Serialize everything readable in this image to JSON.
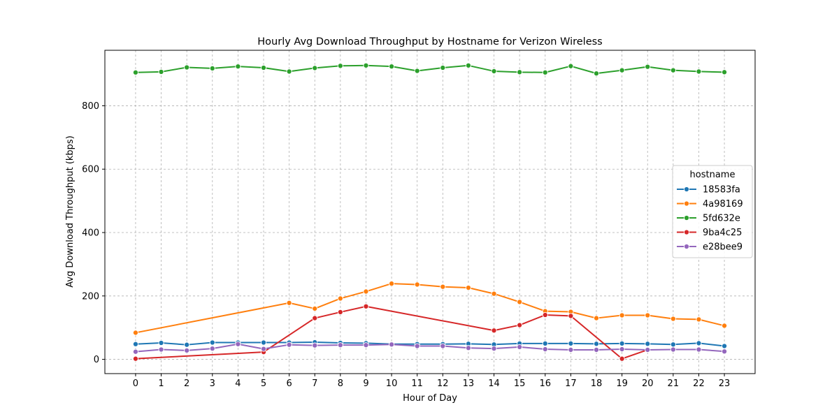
{
  "chart_data": {
    "type": "line",
    "title": "Hourly Avg Download Throughput by Hostname for Verizon Wireless",
    "xlabel": "Hour of Day",
    "ylabel": "Avg Download Throughput (kbps)",
    "xlim": [
      -1.2,
      24.2
    ],
    "ylim": [
      -45,
      975
    ],
    "x_ticks": [
      0,
      1,
      2,
      3,
      4,
      5,
      6,
      7,
      8,
      9,
      10,
      11,
      12,
      13,
      14,
      15,
      16,
      17,
      18,
      19,
      20,
      21,
      22,
      23
    ],
    "y_ticks": [
      0,
      200,
      400,
      600,
      800
    ],
    "grid": true,
    "legend": {
      "title": "hostname",
      "placement": "center-right"
    },
    "series": [
      {
        "name": "18583fa",
        "color": "#1f77b4",
        "points": [
          [
            0,
            48
          ],
          [
            1,
            52
          ],
          [
            2,
            46
          ],
          [
            3,
            53
          ],
          [
            4,
            53
          ],
          [
            5,
            53
          ],
          [
            6,
            53
          ],
          [
            7,
            54
          ],
          [
            8,
            52
          ],
          [
            9,
            51
          ],
          [
            10,
            48
          ],
          [
            11,
            48
          ],
          [
            12,
            48
          ],
          [
            13,
            49
          ],
          [
            14,
            47
          ],
          [
            15,
            50
          ],
          [
            16,
            50
          ],
          [
            17,
            50
          ],
          [
            18,
            49
          ],
          [
            19,
            50
          ],
          [
            20,
            49
          ],
          [
            21,
            47
          ],
          [
            22,
            51
          ],
          [
            23,
            42
          ]
        ]
      },
      {
        "name": "4a98169",
        "color": "#ff7f0e",
        "points": [
          [
            0,
            84
          ],
          [
            6,
            178
          ],
          [
            7,
            160
          ],
          [
            8,
            192
          ],
          [
            9,
            214
          ],
          [
            10,
            239
          ],
          [
            11,
            236
          ],
          [
            12,
            229
          ],
          [
            13,
            226
          ],
          [
            14,
            207
          ],
          [
            15,
            181
          ],
          [
            16,
            152
          ],
          [
            17,
            150
          ],
          [
            18,
            130
          ],
          [
            19,
            139
          ],
          [
            20,
            139
          ],
          [
            21,
            128
          ],
          [
            22,
            126
          ],
          [
            23,
            106
          ]
        ]
      },
      {
        "name": "5fd632e",
        "color": "#2ca02c",
        "points": [
          [
            0,
            905
          ],
          [
            1,
            907
          ],
          [
            2,
            921
          ],
          [
            3,
            918
          ],
          [
            4,
            924
          ],
          [
            5,
            920
          ],
          [
            6,
            908
          ],
          [
            7,
            919
          ],
          [
            8,
            926
          ],
          [
            9,
            927
          ],
          [
            10,
            924
          ],
          [
            11,
            910
          ],
          [
            12,
            920
          ],
          [
            13,
            927
          ],
          [
            14,
            909
          ],
          [
            15,
            906
          ],
          [
            16,
            905
          ],
          [
            17,
            925
          ],
          [
            18,
            902
          ],
          [
            19,
            912
          ],
          [
            20,
            923
          ],
          [
            21,
            912
          ],
          [
            22,
            908
          ],
          [
            23,
            906
          ]
        ]
      },
      {
        "name": "9ba4c25",
        "color": "#d62728",
        "points": [
          [
            0,
            2
          ],
          [
            5,
            23
          ],
          [
            7,
            130
          ],
          [
            8,
            149
          ],
          [
            9,
            167
          ],
          [
            14,
            91
          ],
          [
            15,
            108
          ],
          [
            16,
            140
          ],
          [
            17,
            137
          ],
          [
            19,
            2
          ],
          [
            20,
            30
          ]
        ]
      },
      {
        "name": "e28bee9",
        "color": "#9467bd",
        "points": [
          [
            0,
            24
          ],
          [
            1,
            31
          ],
          [
            2,
            28
          ],
          [
            3,
            34
          ],
          [
            4,
            48
          ],
          [
            5,
            33
          ],
          [
            6,
            46
          ],
          [
            7,
            44
          ],
          [
            8,
            45
          ],
          [
            9,
            45
          ],
          [
            10,
            47
          ],
          [
            11,
            42
          ],
          [
            12,
            42
          ],
          [
            13,
            36
          ],
          [
            14,
            34
          ],
          [
            15,
            39
          ],
          [
            16,
            32
          ],
          [
            17,
            30
          ],
          [
            18,
            30
          ],
          [
            19,
            32
          ],
          [
            20,
            30
          ],
          [
            21,
            31
          ],
          [
            22,
            31
          ],
          [
            23,
            25
          ]
        ]
      }
    ]
  }
}
